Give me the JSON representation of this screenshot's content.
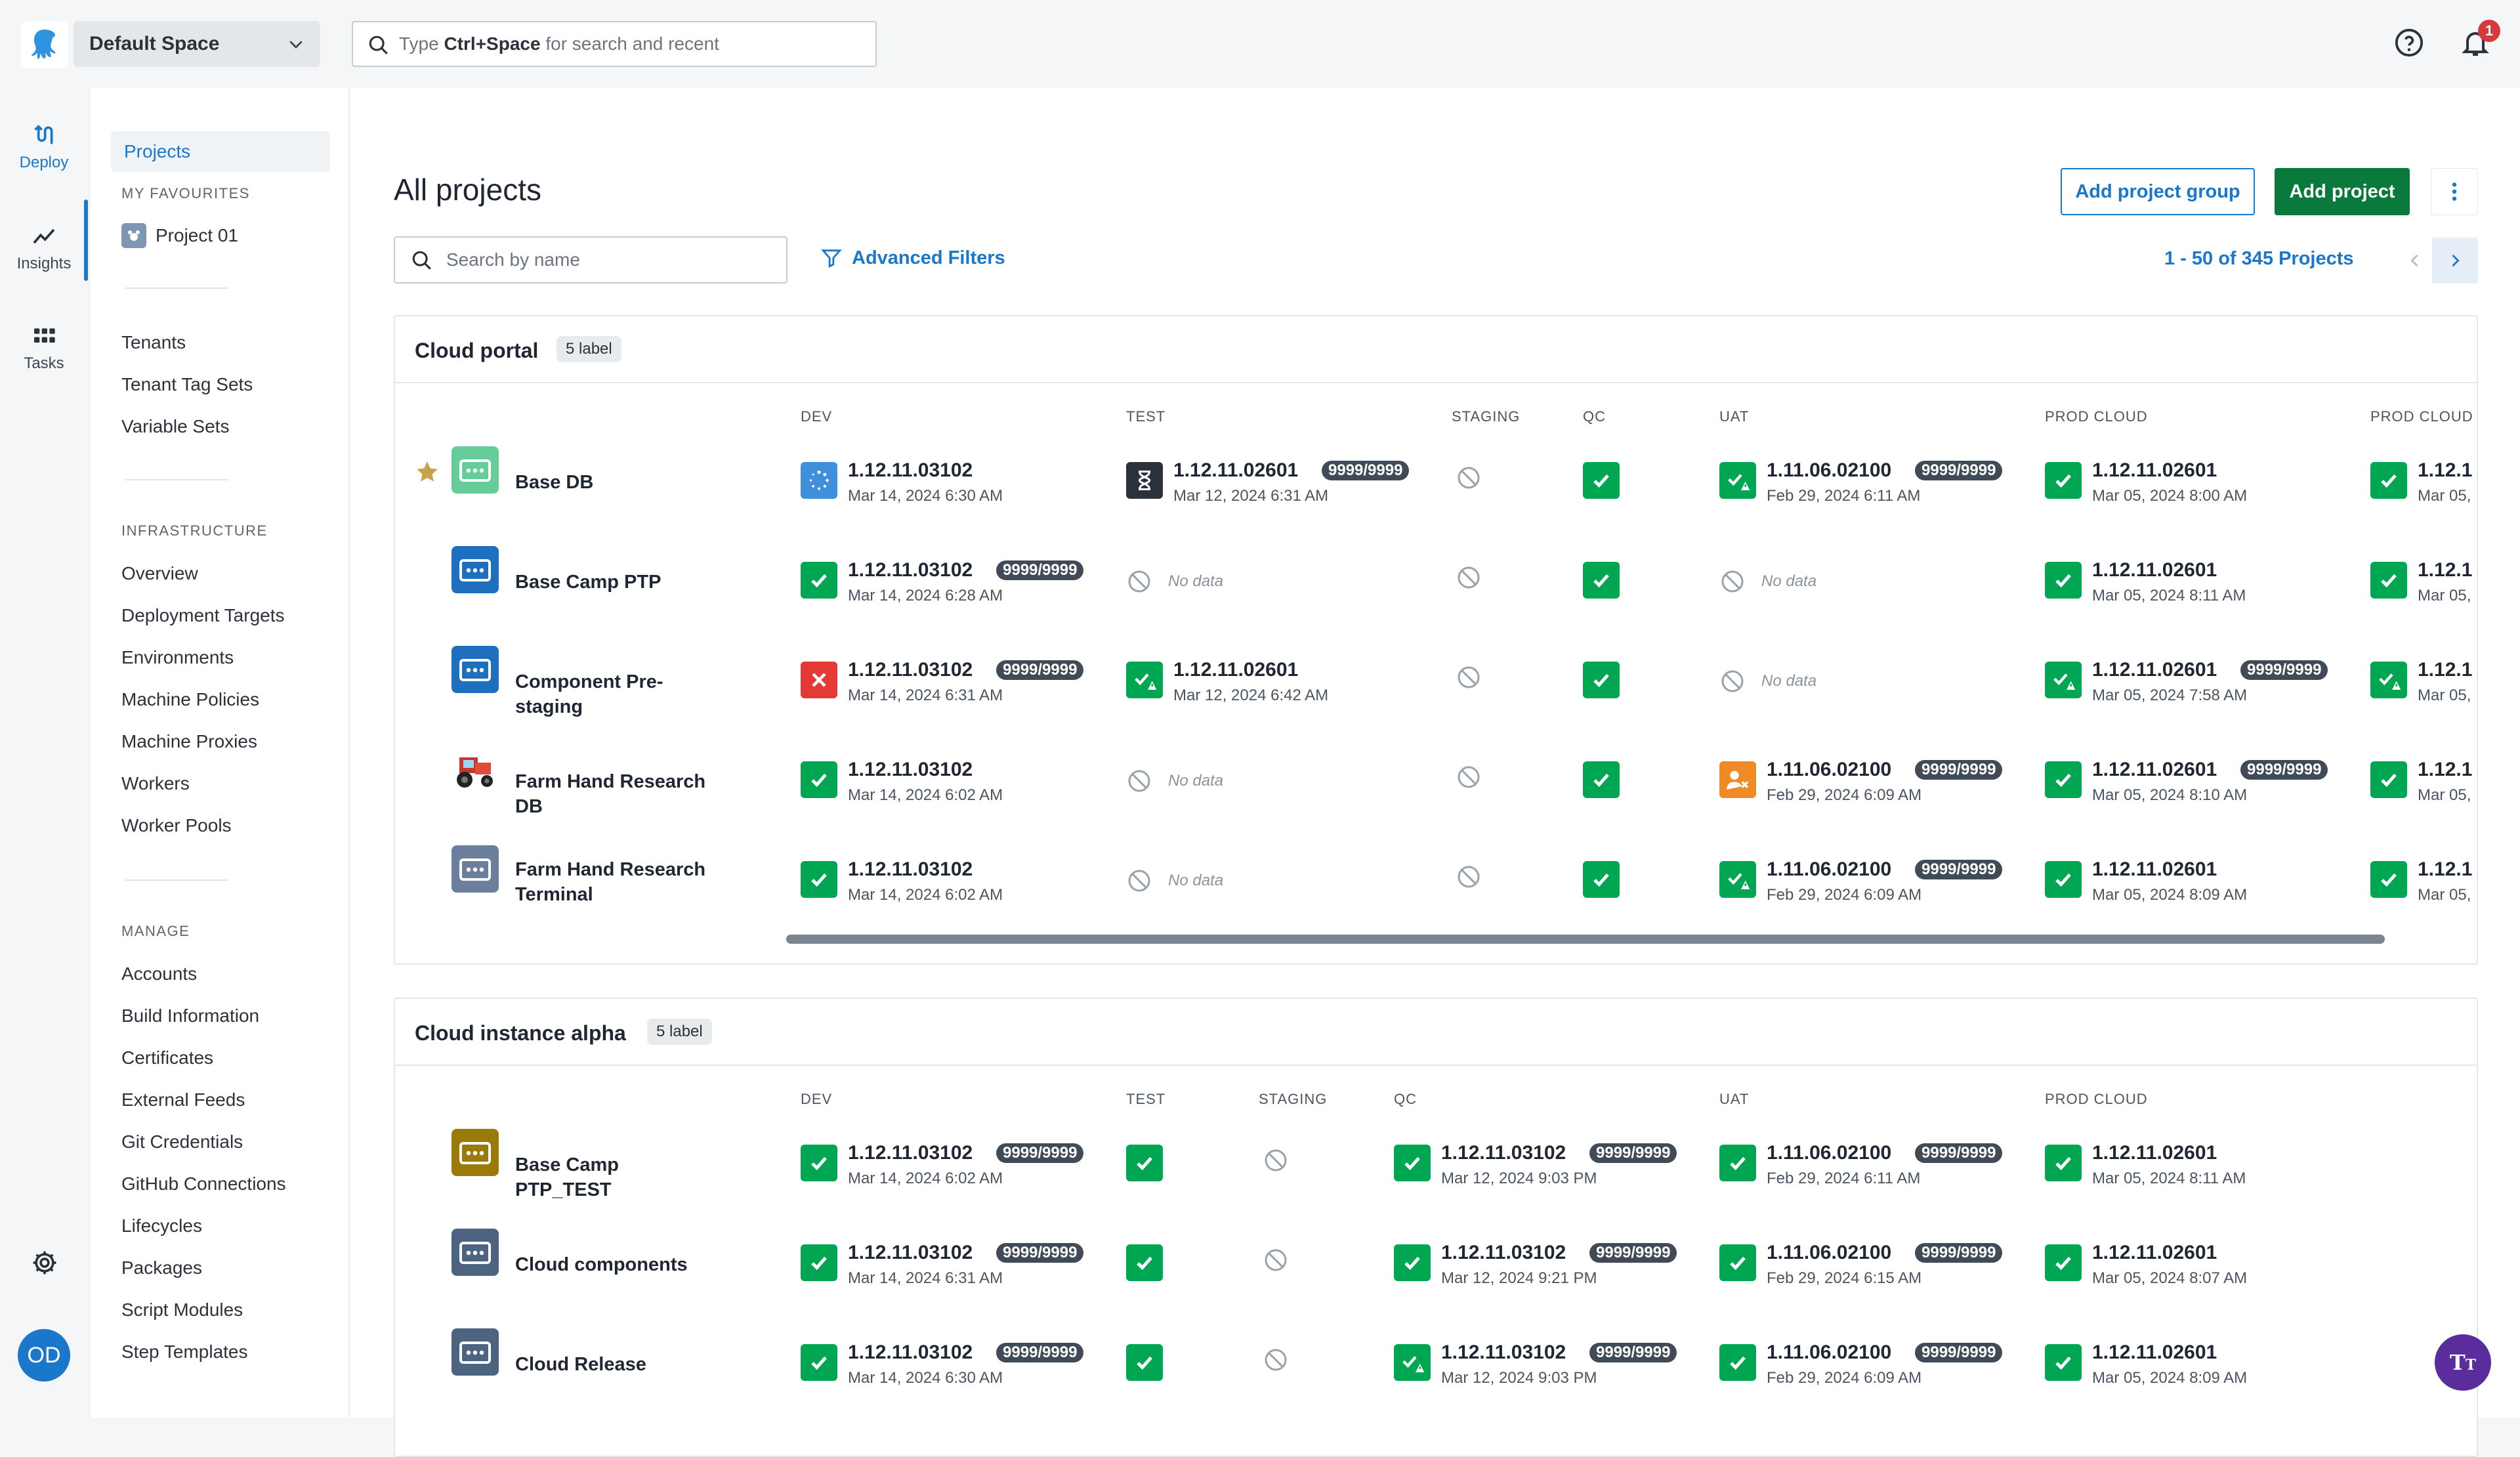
{
  "topbar": {
    "space_name": "Default Space",
    "search_prefix": "Type",
    "search_key": "Ctrl+Space",
    "search_suffix": "for search and recent",
    "notification_count": "1"
  },
  "rail": {
    "items": [
      {
        "label": "Deploy",
        "icon": "deploy-icon"
      },
      {
        "label": "Insights",
        "icon": "insights-icon"
      },
      {
        "label": "Tasks",
        "icon": "tasks-icon"
      }
    ],
    "avatar_initials": "OD"
  },
  "sidebar": {
    "projects": "Projects",
    "my_favourites": "MY FAVOURITES",
    "favourite": "Project 01",
    "links1": [
      "Tenants",
      "Tenant Tag Sets",
      "Variable Sets"
    ],
    "infrastructure": "INFRASTRUCTURE",
    "infra_links": [
      "Overview",
      "Deployment Targets",
      "Environments",
      "Machine Policies",
      "Machine Proxies",
      "Workers",
      "Worker Pools"
    ],
    "manage": "MANAGE",
    "manage_links": [
      "Accounts",
      "Build Information",
      "Certificates",
      "External Feeds",
      "Git Credentials",
      "GitHub Connections",
      "Lifecycles",
      "Packages",
      "Script Modules",
      "Step Templates"
    ]
  },
  "main": {
    "title": "All projects",
    "add_group": "Add project group",
    "add_project": "Add project",
    "search_placeholder": "Search by name",
    "advanced_filters": "Advanced Filters",
    "pager": "1 - 50 of 345 Projects"
  },
  "groups": [
    {
      "title": "Cloud portal",
      "label": "5 label",
      "columns": [
        "DEV",
        "TEST",
        "STAGING",
        "QC",
        "UAT",
        "PROD CLOUD",
        "PROD CLOUD"
      ],
      "rows": [
        {
          "name": "Base DB",
          "favourite": true,
          "cells": [
            {
              "status": "in-progress",
              "version": "1.12.11.03102",
              "date": "Mar 14, 2024 6:30 AM"
            },
            {
              "status": "queued",
              "version": "1.12.11.02601",
              "date": "Mar 12, 2024 6:31 AM",
              "badge": "9999/9999"
            },
            {
              "status": "none"
            },
            {
              "status": "success"
            },
            {
              "status": "success-warning",
              "version": "1.11.06.02100",
              "date": "Feb 29, 2024 6:11 AM",
              "badge": "9999/9999"
            },
            {
              "status": "success",
              "version": "1.12.11.02601",
              "date": "Mar 05, 2024 8:00 AM"
            },
            {
              "status": "success",
              "version": "1.12.1",
              "date": "Mar 05,"
            }
          ]
        },
        {
          "name": "Base Camp PTP",
          "cells": [
            {
              "status": "success",
              "version": "1.12.11.03102",
              "date": "Mar 14, 2024 6:28 AM",
              "badge": "9999/9999"
            },
            {
              "status": "nodata",
              "text": "No data"
            },
            {
              "status": "none"
            },
            {
              "status": "success"
            },
            {
              "status": "nodata",
              "text": "No data"
            },
            {
              "status": "success",
              "version": "1.12.11.02601",
              "date": "Mar 05, 2024 8:11 AM"
            },
            {
              "status": "success",
              "version": "1.12.1",
              "date": "Mar 05,"
            }
          ]
        },
        {
          "name": "Component Pre-staging",
          "cells": [
            {
              "status": "failed",
              "version": "1.12.11.03102",
              "date": "Mar 14, 2024 6:31 AM",
              "badge": "9999/9999"
            },
            {
              "status": "success-warning",
              "version": "1.12.11.02601",
              "date": "Mar 12, 2024 6:42 AM"
            },
            {
              "status": "none"
            },
            {
              "status": "success"
            },
            {
              "status": "nodata",
              "text": "No data"
            },
            {
              "status": "success-warning",
              "version": "1.12.11.02601",
              "date": "Mar 05, 2024 7:58 AM",
              "badge": "9999/9999"
            },
            {
              "status": "success-warning",
              "version": "1.12.1",
              "date": "Mar 05,"
            }
          ]
        },
        {
          "name": "Farm Hand Research DB",
          "cells": [
            {
              "status": "success",
              "version": "1.12.11.03102",
              "date": "Mar 14, 2024 6:02 AM"
            },
            {
              "status": "nodata",
              "text": "No data"
            },
            {
              "status": "none"
            },
            {
              "status": "success"
            },
            {
              "status": "manual",
              "version": "1.11.06.02100",
              "date": "Feb 29, 2024 6:09 AM",
              "badge": "9999/9999"
            },
            {
              "status": "success",
              "version": "1.12.11.02601",
              "date": "Mar 05, 2024 8:10 AM",
              "badge": "9999/9999"
            },
            {
              "status": "success",
              "version": "1.12.1",
              "date": "Mar 05,"
            }
          ]
        },
        {
          "name": "Farm Hand Research Terminal",
          "cells": [
            {
              "status": "success",
              "version": "1.12.11.03102",
              "date": "Mar 14, 2024 6:02 AM"
            },
            {
              "status": "nodata",
              "text": "No data"
            },
            {
              "status": "none"
            },
            {
              "status": "success"
            },
            {
              "status": "success-warning",
              "version": "1.11.06.02100",
              "date": "Feb 29, 2024 6:09 AM",
              "badge": "9999/9999"
            },
            {
              "status": "success",
              "version": "1.12.11.02601",
              "date": "Mar 05, 2024 8:09 AM"
            },
            {
              "status": "success",
              "version": "1.12.1",
              "date": "Mar 05,"
            }
          ]
        }
      ]
    },
    {
      "title": "Cloud instance alpha",
      "label": "5 label",
      "columns": [
        "DEV",
        "TEST",
        "STAGING",
        "QC",
        "UAT",
        "PROD CLOUD"
      ],
      "rows": [
        {
          "name": "Base Camp PTP_TEST",
          "cells": [
            {
              "status": "success",
              "version": "1.12.11.03102",
              "date": "Mar 14, 2024 6:02 AM",
              "badge": "9999/9999"
            },
            {
              "status": "success"
            },
            {
              "status": "none"
            },
            {
              "status": "success",
              "version": "1.12.11.03102",
              "date": "Mar 12, 2024 9:03 PM",
              "badge": "9999/9999"
            },
            {
              "status": "success",
              "version": "1.11.06.02100",
              "date": "Feb 29, 2024 6:11 AM",
              "badge": "9999/9999"
            },
            {
              "status": "success",
              "version": "1.12.11.02601",
              "date": "Mar 05, 2024 8:11 AM"
            }
          ]
        },
        {
          "name": "Cloud components",
          "cells": [
            {
              "status": "success",
              "version": "1.12.11.03102",
              "date": "Mar 14, 2024 6:31 AM",
              "badge": "9999/9999"
            },
            {
              "status": "success"
            },
            {
              "status": "none"
            },
            {
              "status": "success",
              "version": "1.12.11.03102",
              "date": "Mar 12, 2024 9:21 PM",
              "badge": "9999/9999"
            },
            {
              "status": "success",
              "version": "1.11.06.02100",
              "date": "Feb 29, 2024 6:15 AM",
              "badge": "9999/9999"
            },
            {
              "status": "success",
              "version": "1.12.11.02601",
              "date": "Mar 05, 2024 8:07 AM"
            }
          ]
        },
        {
          "name": "Cloud Release",
          "cells": [
            {
              "status": "success",
              "version": "1.12.11.03102",
              "date": "Mar 14, 2024 6:30 AM",
              "badge": "9999/9999"
            },
            {
              "status": "success"
            },
            {
              "status": "none"
            },
            {
              "status": "success-warning",
              "version": "1.12.11.03102",
              "date": "Mar 12, 2024 9:03 PM",
              "badge": "9999/9999"
            },
            {
              "status": "success",
              "version": "1.11.06.02100",
              "date": "Feb 29, 2024 6:09 AM",
              "badge": "9999/9999"
            },
            {
              "status": "success",
              "version": "1.12.11.02601",
              "date": "Mar 05, 2024 8:09 AM"
            }
          ]
        }
      ]
    }
  ],
  "colors": {
    "accent": "#1a77ca",
    "success": "#00a651",
    "failed": "#e53935",
    "manual": "#f08a24",
    "primary_button": "#0a7a3c"
  }
}
